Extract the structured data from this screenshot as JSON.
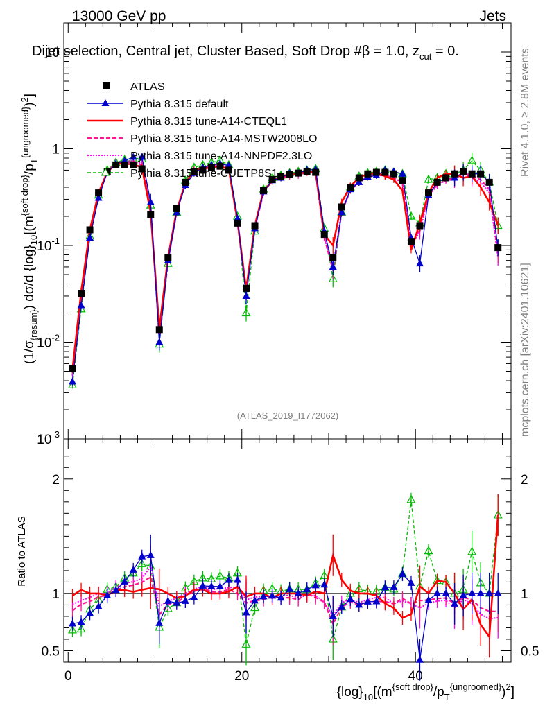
{
  "header": {
    "left": "13000 GeV pp",
    "right": "Jets",
    "title": "Dijet selection, Central jet, Cluster Based, Soft Drop #β = 1.0, z_cut = 0.",
    "title_main": "Dijet selection, Central jet, Cluster Based, Soft Drop #β = 1.0, z",
    "title_sub": "cut",
    "title_end": " = 0."
  },
  "side": {
    "rivet": "Rivet 4.1.0, ≥ 2.8M events",
    "mcplots": "mcplots.cern.ch [arXiv:2401.10621]"
  },
  "analysis_id": "(ATLAS_2019_I1772062)",
  "colors": {
    "atlas": "#000000",
    "default": "#0000cc",
    "cteql1": "#ff0000",
    "mstw": "#ff1493",
    "nnpdf": "#ff00ff",
    "cuetp8s1": "#00bb00"
  },
  "chart_data": {
    "type": "line",
    "title": "Dijet selection, Central jet, Cluster Based, Soft Drop #β = 1.0, z_cut = 0.",
    "xlabel": "{log}_10[(m^{soft drop}/p_T^{ungroomed})^2]",
    "ylabel": "(1/σ_{resum}) dσ/d {log}_10[(m^{soft drop}/p_T^{ungroomed})^2]",
    "ratio_ylabel": "Ratio to ATLAS",
    "xlim": [
      -0.5,
      51
    ],
    "ylim": [
      0.001,
      20
    ],
    "yscale": "log",
    "ratio_ylim": [
      0.4,
      2.35
    ],
    "x_ticks": [
      "0",
      "20",
      "40"
    ],
    "y_ticks": [
      "10^-3",
      "10^-2",
      "10^-1",
      "1",
      "10"
    ],
    "ratio_ticks": [
      "0.5",
      "1",
      "2"
    ],
    "legend": [
      "ATLAS",
      "Pythia 8.315 default",
      "Pythia 8.315 tune-A14-CTEQL1",
      "Pythia 8.315 tune-A14-MSTW2008LO",
      "Pythia 8.315 tune-A14-NNPDF2.3LO",
      "Pythia 8.315 tune-CUETP8S1"
    ],
    "x": [
      0.5,
      1.5,
      2.5,
      3.5,
      4.5,
      5.5,
      6.5,
      7.5,
      8.5,
      9.5,
      10.5,
      11.5,
      12.5,
      13.5,
      14.5,
      15.5,
      16.5,
      17.5,
      18.5,
      19.5,
      20.5,
      21.5,
      22.5,
      23.5,
      24.5,
      25.5,
      26.5,
      27.5,
      28.5,
      29.5,
      30.5,
      31.5,
      32.5,
      33.5,
      34.5,
      35.5,
      36.5,
      37.5,
      38.5,
      39.5,
      40.5,
      41.5,
      42.5,
      43.5,
      44.5,
      45.5,
      46.5,
      47.5,
      48.5,
      49.5
    ],
    "series": [
      {
        "name": "ATLAS",
        "values": [
          0.0053,
          0.032,
          0.145,
          0.35,
          0.58,
          0.68,
          0.68,
          0.68,
          0.62,
          0.21,
          0.0135,
          0.075,
          0.24,
          0.45,
          0.58,
          0.6,
          0.64,
          0.66,
          0.6,
          0.17,
          0.036,
          0.16,
          0.37,
          0.48,
          0.52,
          0.54,
          0.56,
          0.58,
          0.57,
          0.13,
          0.075,
          0.25,
          0.4,
          0.5,
          0.55,
          0.57,
          0.57,
          0.55,
          0.47,
          0.11,
          0.16,
          0.35,
          0.45,
          0.5,
          0.55,
          0.58,
          0.55,
          0.55,
          0.45,
          0.095
        ]
      },
      {
        "name": "Pythia 8.315 default",
        "values": [
          0.0039,
          0.024,
          0.12,
          0.31,
          0.57,
          0.7,
          0.75,
          0.82,
          0.82,
          0.28,
          0.01,
          0.07,
          0.22,
          0.42,
          0.56,
          0.64,
          0.68,
          0.7,
          0.67,
          0.19,
          0.03,
          0.15,
          0.36,
          0.47,
          0.5,
          0.56,
          0.56,
          0.6,
          0.61,
          0.14,
          0.06,
          0.22,
          0.38,
          0.45,
          0.51,
          0.53,
          0.6,
          0.58,
          0.55,
          0.12,
          0.065,
          0.33,
          0.45,
          0.5,
          0.5,
          0.57,
          0.55,
          0.55,
          0.45,
          0.095
        ]
      },
      {
        "name": "Pythia 8.315 tune-A14-CTEQL1",
        "values": [
          0.0052,
          0.033,
          0.145,
          0.35,
          0.57,
          0.7,
          0.7,
          0.69,
          0.64,
          0.22,
          0.014,
          0.075,
          0.23,
          0.44,
          0.6,
          0.62,
          0.64,
          0.66,
          0.61,
          0.18,
          0.035,
          0.16,
          0.37,
          0.46,
          0.52,
          0.54,
          0.56,
          0.57,
          0.58,
          0.13,
          0.1,
          0.28,
          0.41,
          0.5,
          0.55,
          0.56,
          0.52,
          0.48,
          0.37,
          0.09,
          0.17,
          0.35,
          0.5,
          0.55,
          0.55,
          0.5,
          0.52,
          0.4,
          0.28,
          0.16
        ]
      },
      {
        "name": "Pythia 8.315 tune-A14-MSTW2008LO",
        "values": [
          0.0045,
          0.029,
          0.135,
          0.34,
          0.57,
          0.7,
          0.72,
          0.73,
          0.68,
          0.24,
          0.011,
          0.068,
          0.22,
          0.44,
          0.59,
          0.63,
          0.65,
          0.67,
          0.62,
          0.17,
          0.033,
          0.15,
          0.35,
          0.47,
          0.5,
          0.52,
          0.53,
          0.58,
          0.55,
          0.12,
          0.055,
          0.22,
          0.37,
          0.45,
          0.51,
          0.53,
          0.53,
          0.5,
          0.45,
          0.1,
          0.15,
          0.33,
          0.43,
          0.48,
          0.5,
          0.56,
          0.52,
          0.48,
          0.38,
          0.08
        ]
      },
      {
        "name": "Pythia 8.315 tune-A14-NNPDF2.3LO",
        "values": [
          0.0048,
          0.03,
          0.14,
          0.35,
          0.58,
          0.72,
          0.74,
          0.75,
          0.7,
          0.26,
          0.012,
          0.07,
          0.23,
          0.45,
          0.6,
          0.64,
          0.66,
          0.69,
          0.63,
          0.18,
          0.034,
          0.155,
          0.36,
          0.47,
          0.51,
          0.53,
          0.54,
          0.57,
          0.56,
          0.12,
          0.06,
          0.23,
          0.38,
          0.46,
          0.52,
          0.55,
          0.55,
          0.5,
          0.44,
          0.1,
          0.14,
          0.32,
          0.42,
          0.47,
          0.48,
          0.55,
          0.5,
          0.45,
          0.35,
          0.075
        ]
      },
      {
        "name": "Pythia 8.315 tune-CUETP8S1",
        "values": [
          0.0036,
          0.022,
          0.125,
          0.33,
          0.6,
          0.72,
          0.77,
          0.8,
          0.78,
          0.26,
          0.0095,
          0.065,
          0.22,
          0.47,
          0.64,
          0.68,
          0.72,
          0.76,
          0.68,
          0.2,
          0.02,
          0.14,
          0.38,
          0.5,
          0.53,
          0.56,
          0.58,
          0.6,
          0.62,
          0.15,
          0.045,
          0.22,
          0.4,
          0.52,
          0.56,
          0.58,
          0.6,
          0.57,
          0.55,
          0.2,
          0.17,
          0.48,
          0.5,
          0.55,
          0.55,
          0.6,
          0.75,
          0.6,
          0.45,
          0.16
        ]
      }
    ]
  }
}
